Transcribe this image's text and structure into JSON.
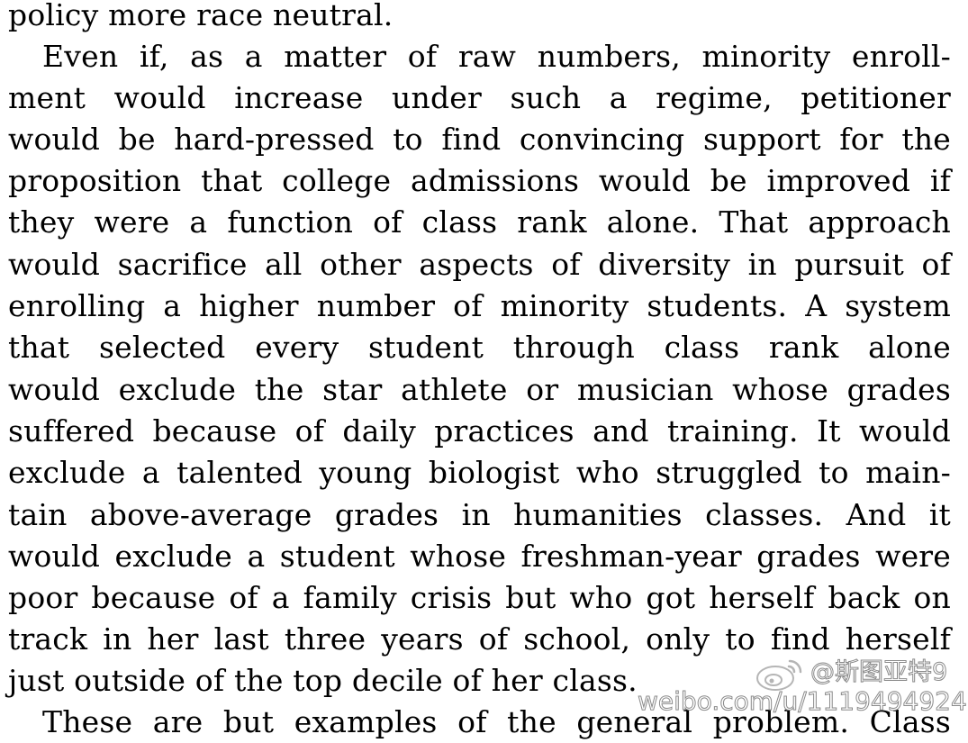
{
  "document": {
    "lines": [
      "policy more race neutral.",
      "Even if, as a matter of raw numbers, minority enroll-",
      "ment would increase under such a regime, petitioner",
      "would be hard-pressed to find convincing support for the",
      "proposition that college admissions would be improved if",
      "they were a function of class rank alone.  That approach",
      "would sacrifice all other aspects of diversity in pursuit of",
      "enrolling a higher number of minority students.  A system",
      "that selected every student through class rank alone",
      "would exclude the star athlete or musician whose grades",
      "suffered because of daily practices and training.  It would",
      "exclude a talented young biologist who struggled to main-",
      "tain above-average grades in humanities classes.  And it",
      "would exclude a student whose freshman-year grades were",
      "poor because of a family crisis but who got herself back on",
      "track in her last three years of school, only to find herself",
      "just outside of the top decile of her class.",
      "These are but examples of the general problem.  Class"
    ]
  },
  "watermark": {
    "handle": "@斯图亚特9",
    "url": "weibo.com/u/1119494924",
    "icon": "weibo-logo-icon"
  }
}
